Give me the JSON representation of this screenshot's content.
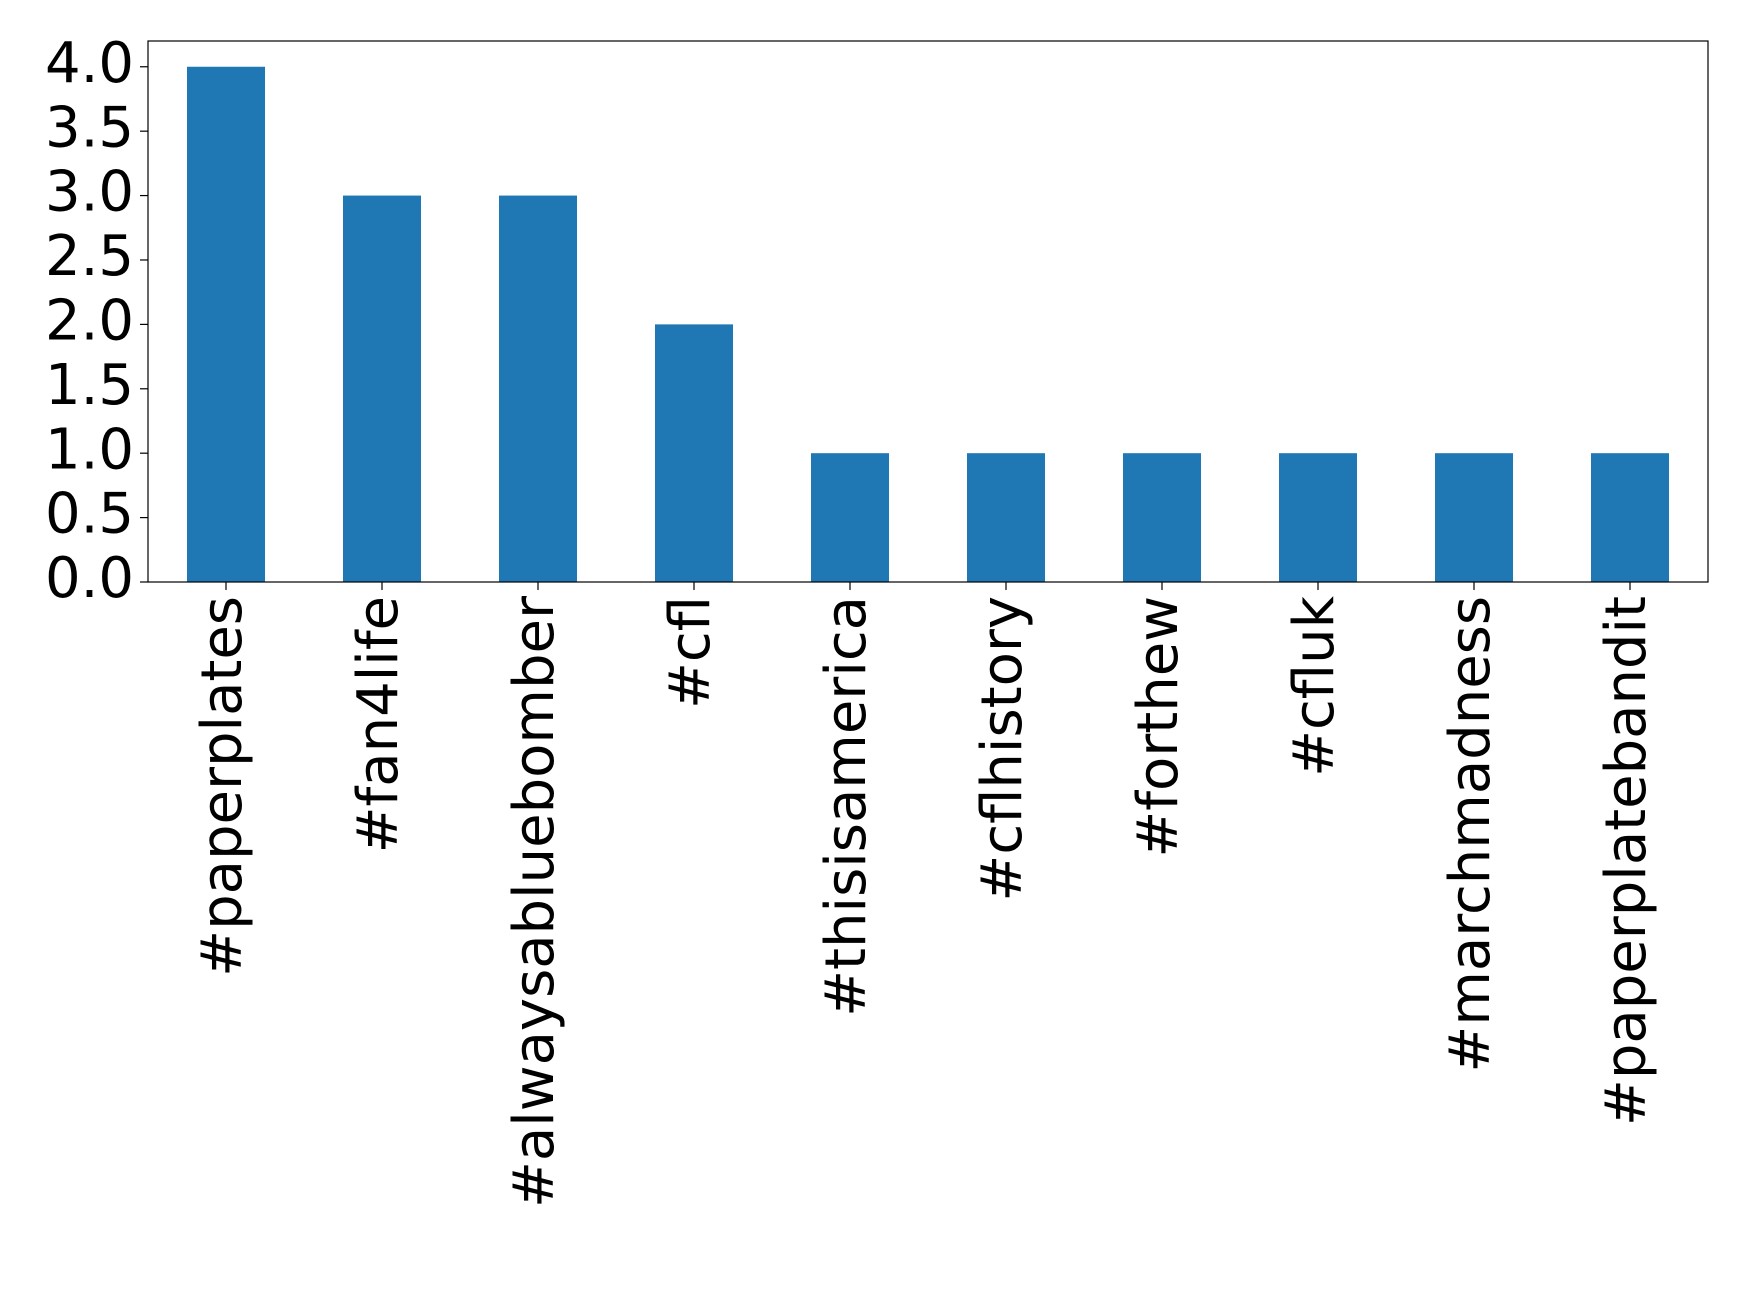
{
  "chart_data": {
    "type": "bar",
    "categories": [
      "#paperplates",
      "#fan4life",
      "#alwaysabluebomber",
      "#cfl",
      "#thisisamerica",
      "#cflhistory",
      "#forthew",
      "#cfluk",
      "#marchmadness",
      "#paperplatebandit"
    ],
    "values": [
      4,
      3,
      3,
      2,
      1,
      1,
      1,
      1,
      1,
      1
    ],
    "color": "#1f77b4",
    "ylim": [
      0,
      4.2
    ],
    "yticks": [
      {
        "value": 0,
        "label": "0.0"
      },
      0.5,
      {
        "value": 1,
        "label": "1.0"
      },
      1.5,
      {
        "value": 2,
        "label": "2.0"
      },
      2.5,
      {
        "value": 3,
        "label": "3.0"
      },
      3.5,
      {
        "value": 4,
        "label": "4.0"
      }
    ],
    "grid": false
  }
}
